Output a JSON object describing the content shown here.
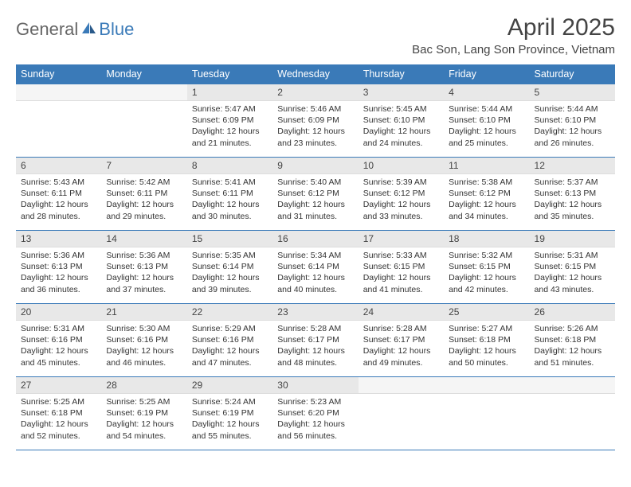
{
  "logo": {
    "general": "General",
    "blue": "Blue"
  },
  "title": "April 2025",
  "location": "Bac Son, Lang Son Province, Vietnam",
  "colors": {
    "header_bg": "#3a7ab8",
    "header_fg": "#ffffff",
    "daynum_bg": "#e8e8e8",
    "border": "#3a7ab8",
    "logo_gray": "#666666",
    "logo_blue": "#3a7ab8"
  },
  "weekdays": [
    "Sunday",
    "Monday",
    "Tuesday",
    "Wednesday",
    "Thursday",
    "Friday",
    "Saturday"
  ],
  "weeks": [
    [
      {
        "day": "",
        "sunrise": "",
        "sunset": "",
        "daylight": ""
      },
      {
        "day": "",
        "sunrise": "",
        "sunset": "",
        "daylight": ""
      },
      {
        "day": "1",
        "sunrise": "Sunrise: 5:47 AM",
        "sunset": "Sunset: 6:09 PM",
        "daylight": "Daylight: 12 hours and 21 minutes."
      },
      {
        "day": "2",
        "sunrise": "Sunrise: 5:46 AM",
        "sunset": "Sunset: 6:09 PM",
        "daylight": "Daylight: 12 hours and 23 minutes."
      },
      {
        "day": "3",
        "sunrise": "Sunrise: 5:45 AM",
        "sunset": "Sunset: 6:10 PM",
        "daylight": "Daylight: 12 hours and 24 minutes."
      },
      {
        "day": "4",
        "sunrise": "Sunrise: 5:44 AM",
        "sunset": "Sunset: 6:10 PM",
        "daylight": "Daylight: 12 hours and 25 minutes."
      },
      {
        "day": "5",
        "sunrise": "Sunrise: 5:44 AM",
        "sunset": "Sunset: 6:10 PM",
        "daylight": "Daylight: 12 hours and 26 minutes."
      }
    ],
    [
      {
        "day": "6",
        "sunrise": "Sunrise: 5:43 AM",
        "sunset": "Sunset: 6:11 PM",
        "daylight": "Daylight: 12 hours and 28 minutes."
      },
      {
        "day": "7",
        "sunrise": "Sunrise: 5:42 AM",
        "sunset": "Sunset: 6:11 PM",
        "daylight": "Daylight: 12 hours and 29 minutes."
      },
      {
        "day": "8",
        "sunrise": "Sunrise: 5:41 AM",
        "sunset": "Sunset: 6:11 PM",
        "daylight": "Daylight: 12 hours and 30 minutes."
      },
      {
        "day": "9",
        "sunrise": "Sunrise: 5:40 AM",
        "sunset": "Sunset: 6:12 PM",
        "daylight": "Daylight: 12 hours and 31 minutes."
      },
      {
        "day": "10",
        "sunrise": "Sunrise: 5:39 AM",
        "sunset": "Sunset: 6:12 PM",
        "daylight": "Daylight: 12 hours and 33 minutes."
      },
      {
        "day": "11",
        "sunrise": "Sunrise: 5:38 AM",
        "sunset": "Sunset: 6:12 PM",
        "daylight": "Daylight: 12 hours and 34 minutes."
      },
      {
        "day": "12",
        "sunrise": "Sunrise: 5:37 AM",
        "sunset": "Sunset: 6:13 PM",
        "daylight": "Daylight: 12 hours and 35 minutes."
      }
    ],
    [
      {
        "day": "13",
        "sunrise": "Sunrise: 5:36 AM",
        "sunset": "Sunset: 6:13 PM",
        "daylight": "Daylight: 12 hours and 36 minutes."
      },
      {
        "day": "14",
        "sunrise": "Sunrise: 5:36 AM",
        "sunset": "Sunset: 6:13 PM",
        "daylight": "Daylight: 12 hours and 37 minutes."
      },
      {
        "day": "15",
        "sunrise": "Sunrise: 5:35 AM",
        "sunset": "Sunset: 6:14 PM",
        "daylight": "Daylight: 12 hours and 39 minutes."
      },
      {
        "day": "16",
        "sunrise": "Sunrise: 5:34 AM",
        "sunset": "Sunset: 6:14 PM",
        "daylight": "Daylight: 12 hours and 40 minutes."
      },
      {
        "day": "17",
        "sunrise": "Sunrise: 5:33 AM",
        "sunset": "Sunset: 6:15 PM",
        "daylight": "Daylight: 12 hours and 41 minutes."
      },
      {
        "day": "18",
        "sunrise": "Sunrise: 5:32 AM",
        "sunset": "Sunset: 6:15 PM",
        "daylight": "Daylight: 12 hours and 42 minutes."
      },
      {
        "day": "19",
        "sunrise": "Sunrise: 5:31 AM",
        "sunset": "Sunset: 6:15 PM",
        "daylight": "Daylight: 12 hours and 43 minutes."
      }
    ],
    [
      {
        "day": "20",
        "sunrise": "Sunrise: 5:31 AM",
        "sunset": "Sunset: 6:16 PM",
        "daylight": "Daylight: 12 hours and 45 minutes."
      },
      {
        "day": "21",
        "sunrise": "Sunrise: 5:30 AM",
        "sunset": "Sunset: 6:16 PM",
        "daylight": "Daylight: 12 hours and 46 minutes."
      },
      {
        "day": "22",
        "sunrise": "Sunrise: 5:29 AM",
        "sunset": "Sunset: 6:16 PM",
        "daylight": "Daylight: 12 hours and 47 minutes."
      },
      {
        "day": "23",
        "sunrise": "Sunrise: 5:28 AM",
        "sunset": "Sunset: 6:17 PM",
        "daylight": "Daylight: 12 hours and 48 minutes."
      },
      {
        "day": "24",
        "sunrise": "Sunrise: 5:28 AM",
        "sunset": "Sunset: 6:17 PM",
        "daylight": "Daylight: 12 hours and 49 minutes."
      },
      {
        "day": "25",
        "sunrise": "Sunrise: 5:27 AM",
        "sunset": "Sunset: 6:18 PM",
        "daylight": "Daylight: 12 hours and 50 minutes."
      },
      {
        "day": "26",
        "sunrise": "Sunrise: 5:26 AM",
        "sunset": "Sunset: 6:18 PM",
        "daylight": "Daylight: 12 hours and 51 minutes."
      }
    ],
    [
      {
        "day": "27",
        "sunrise": "Sunrise: 5:25 AM",
        "sunset": "Sunset: 6:18 PM",
        "daylight": "Daylight: 12 hours and 52 minutes."
      },
      {
        "day": "28",
        "sunrise": "Sunrise: 5:25 AM",
        "sunset": "Sunset: 6:19 PM",
        "daylight": "Daylight: 12 hours and 54 minutes."
      },
      {
        "day": "29",
        "sunrise": "Sunrise: 5:24 AM",
        "sunset": "Sunset: 6:19 PM",
        "daylight": "Daylight: 12 hours and 55 minutes."
      },
      {
        "day": "30",
        "sunrise": "Sunrise: 5:23 AM",
        "sunset": "Sunset: 6:20 PM",
        "daylight": "Daylight: 12 hours and 56 minutes."
      },
      {
        "day": "",
        "sunrise": "",
        "sunset": "",
        "daylight": ""
      },
      {
        "day": "",
        "sunrise": "",
        "sunset": "",
        "daylight": ""
      },
      {
        "day": "",
        "sunrise": "",
        "sunset": "",
        "daylight": ""
      }
    ]
  ]
}
